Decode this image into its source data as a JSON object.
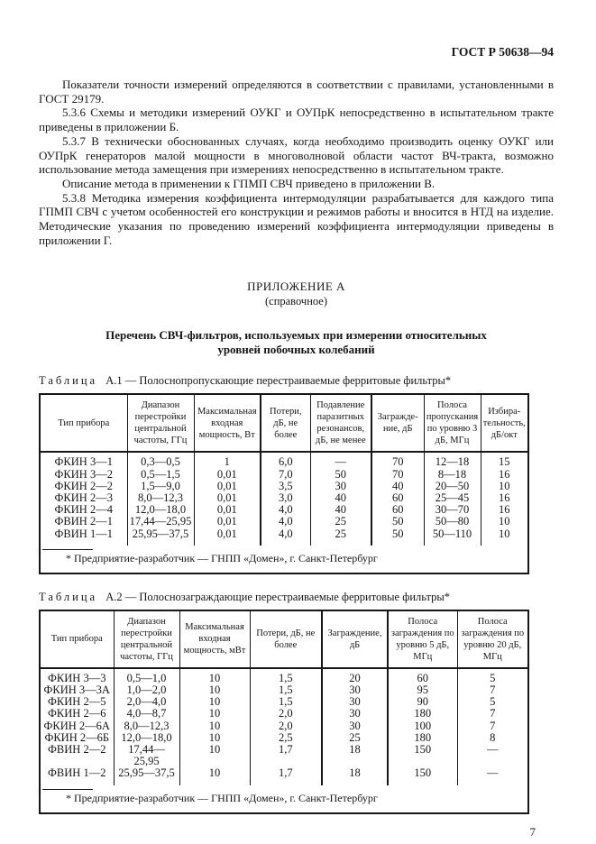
{
  "header": {
    "doc_number": "ГОСТ Р 50638—94"
  },
  "paragraphs": [
    "Показатели точности измерений определяются в соответствии с правилами, установленными в ГОСТ 29179.",
    "5.3.6 Схемы и методики измерений ОУКГ и ОУПрК непосредственно в испытательном тракте приведены в приложении Б.",
    "5.3.7 В технически обоснованных случаях, когда необходимо производить оценку ОУКГ или ОУПрК генераторов малой мощности в многоволновой области частот ВЧ-тракта, возможно использование метода замещения при измерениях непосредственно в испытательном тракте.",
    "Описание метода в применении к ГПМП СВЧ приведено в приложении В.",
    "5.3.8 Методика измерения коэффициента интермодуляции разрабатывается для каждого типа ГПМП СВЧ с учетом особенностей его конструкции и режимов работы и вносится в НТД на изделие. Методические указания по проведению измерений коэффициента интермодуляции приведены в приложении Г."
  ],
  "appendix": {
    "title": "ПРИЛОЖЕНИЕ А",
    "subtitle": "(справочное)",
    "heading_line1": "Перечень СВЧ-фильтров, используемых при измерении относительных",
    "heading_line2": "уровней побочных колебаний"
  },
  "table_a1": {
    "caption_word": "Таблица",
    "caption_text": "А.1 — Полоснопропускающие перестраиваемые ферритовые фильтры*",
    "columns": [
      "Тип прибора",
      "Диапазон перестройки центральной частоты, ГГц",
      "Максимальная входная мощность, Вт",
      "Потери, дБ, не более",
      "Подавление паразитных резонансов, дБ, не менее",
      "Загражде-ние, дБ",
      "Полоса пропускания по уровню 3 дБ, МГц",
      "Избира-тельность, дБ/окт"
    ],
    "rows": [
      [
        "ФКИН 3—1",
        "0,3—0,5",
        "1",
        "6,0",
        "—",
        "70",
        "12—18",
        "15"
      ],
      [
        "ФКИН 3—2",
        "0,5—1,5",
        "0,01",
        "7,0",
        "50",
        "70",
        "8—18",
        "16"
      ],
      [
        "ФКИН 2—2",
        "1,5—9,0",
        "0,01",
        "3,5",
        "30",
        "40",
        "20—50",
        "10"
      ],
      [
        "ФКИН 2—3",
        "8,0—12,3",
        "0,01",
        "3,0",
        "40",
        "60",
        "25—45",
        "16"
      ],
      [
        "ФКИН 2—4",
        "12,0—18,0",
        "0,01",
        "4,0",
        "40",
        "60",
        "30—70",
        "16"
      ],
      [
        "ФВИН 2—1",
        "17,44—25,95",
        "0,01",
        "4,0",
        "25",
        "50",
        "50—80",
        "10"
      ],
      [
        "ФВИН 1—1",
        "25,95—37,5",
        "0,01",
        "4,0",
        "25",
        "50",
        "50—110",
        "10"
      ]
    ],
    "footnote": "* Предприятие-разработчик — ГНПП «Домен», г. Санкт-Петербург"
  },
  "table_a2": {
    "caption_word": "Таблица",
    "caption_text": "А.2 — Полоснозаграждающие перестраиваемые ферритовые фильтры*",
    "columns": [
      "Тип прибора",
      "Диапазон перестройки центральной частоты, ГГц",
      "Максимальная входная мощность, мВт",
      "Потери, дБ, не более",
      "Заграждение, дБ",
      "Полоса заграждения по уровню 5 дБ, МГц",
      "Полоса заграждения по уровню 20 дБ, МГц"
    ],
    "rows": [
      [
        "ФКИН 3—3",
        "0,5—1,0",
        "10",
        "1,5",
        "20",
        "60",
        "5"
      ],
      [
        "ФКИН 3—3А",
        "1,0—2,0",
        "10",
        "1,5",
        "30",
        "95",
        "7"
      ],
      [
        "ФКИН 2—5",
        "2,0—4,0",
        "10",
        "1,5",
        "30",
        "90",
        "5"
      ],
      [
        "ФКИН 2—6",
        "4,0—8,7",
        "10",
        "2,0",
        "30",
        "180",
        "7"
      ],
      [
        "ФКИН 2—6А",
        "8,0—12,3",
        "10",
        "2,0",
        "30",
        "100",
        "7"
      ],
      [
        "ФКИН 2—6Б",
        "12,0—18,0",
        "10",
        "2,5",
        "25",
        "180",
        "8"
      ],
      [
        "ФВИН 2—2",
        "17,44—25,95",
        "10",
        "1,7",
        "18",
        "150",
        "—"
      ],
      [
        "ФВИН 1—2",
        "25,95—37,5",
        "10",
        "1,7",
        "18",
        "150",
        "—"
      ]
    ],
    "footnote": "* Предприятие-разработчик — ГНПП «Домен», г. Санкт-Петербург"
  },
  "footer": {
    "page_number": "7"
  }
}
